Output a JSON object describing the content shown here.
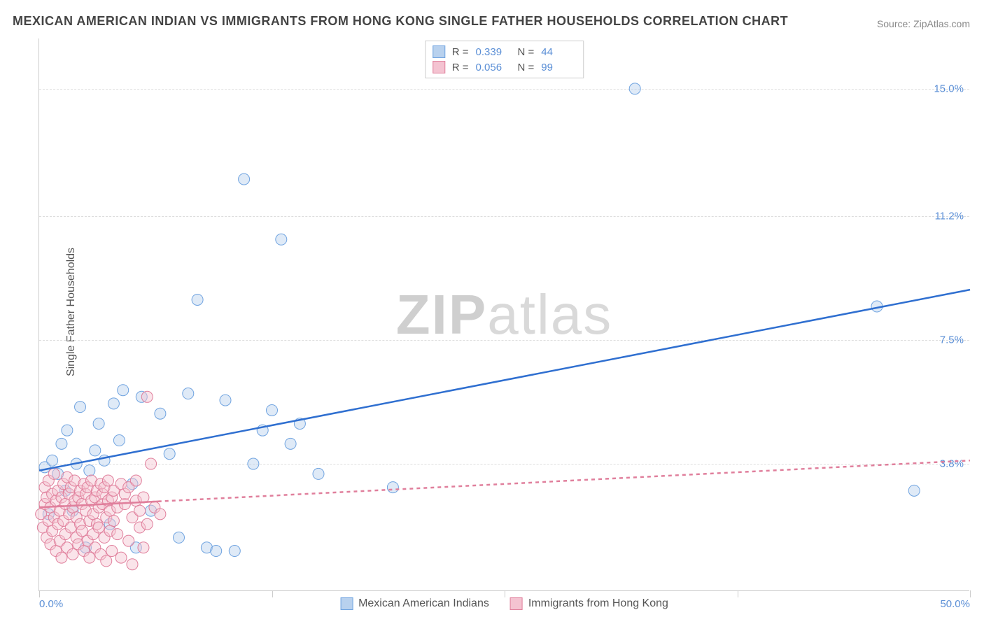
{
  "title": "MEXICAN AMERICAN INDIAN VS IMMIGRANTS FROM HONG KONG SINGLE FATHER HOUSEHOLDS CORRELATION CHART",
  "source": "Source: ZipAtlas.com",
  "ylabel": "Single Father Households",
  "watermark_zip": "ZIP",
  "watermark_atlas": "atlas",
  "chart": {
    "type": "scatter",
    "xlim": [
      0,
      50
    ],
    "ylim": [
      0,
      16.5
    ],
    "x_tick_positions": [
      0,
      12.5,
      25,
      37.5,
      50
    ],
    "x_tick_labels_visible": {
      "0": "0.0%",
      "50": "50.0%"
    },
    "y_gridlines": [
      3.8,
      7.5,
      11.2,
      15.0
    ],
    "y_tick_labels": [
      "3.8%",
      "7.5%",
      "11.2%",
      "15.0%"
    ],
    "background_color": "#ffffff",
    "grid_color": "#dddddd",
    "axis_color": "#cccccc",
    "tick_label_color": "#5b8fd6",
    "label_fontsize": 16,
    "title_fontsize": 18,
    "marker_radius": 8,
    "marker_opacity": 0.45,
    "line_width": 2.5
  },
  "series": [
    {
      "name": "Mexican American Indians",
      "color": "#6fa3e0",
      "fill": "#b8d1ee",
      "stroke": "#6fa3e0",
      "line_color": "#2f6fd0",
      "line_dash": "none",
      "R": "0.339",
      "N": "44",
      "regression": {
        "x1": 0,
        "y1": 3.6,
        "x2": 50,
        "y2": 9.0
      },
      "points": [
        [
          0.3,
          3.7
        ],
        [
          0.5,
          2.3
        ],
        [
          0.7,
          3.9
        ],
        [
          1.0,
          3.5
        ],
        [
          1.2,
          4.4
        ],
        [
          1.4,
          3.0
        ],
        [
          1.5,
          4.8
        ],
        [
          1.8,
          2.4
        ],
        [
          2.0,
          3.8
        ],
        [
          2.2,
          5.5
        ],
        [
          2.5,
          1.3
        ],
        [
          2.7,
          3.6
        ],
        [
          3.0,
          4.2
        ],
        [
          3.2,
          5.0
        ],
        [
          3.5,
          3.9
        ],
        [
          3.8,
          2.0
        ],
        [
          4.0,
          5.6
        ],
        [
          4.3,
          4.5
        ],
        [
          4.5,
          6.0
        ],
        [
          5.0,
          3.2
        ],
        [
          5.2,
          1.3
        ],
        [
          5.5,
          5.8
        ],
        [
          6.0,
          2.4
        ],
        [
          6.5,
          5.3
        ],
        [
          7.0,
          4.1
        ],
        [
          7.5,
          1.6
        ],
        [
          8.0,
          5.9
        ],
        [
          8.5,
          8.7
        ],
        [
          9.0,
          1.3
        ],
        [
          9.5,
          1.2
        ],
        [
          10.0,
          5.7
        ],
        [
          10.5,
          1.2
        ],
        [
          11.0,
          12.3
        ],
        [
          11.5,
          3.8
        ],
        [
          12.0,
          4.8
        ],
        [
          12.5,
          5.4
        ],
        [
          13.0,
          10.5
        ],
        [
          13.5,
          4.4
        ],
        [
          14.0,
          5.0
        ],
        [
          15.0,
          3.5
        ],
        [
          19.0,
          3.1
        ],
        [
          32.0,
          15.0
        ],
        [
          45.0,
          8.5
        ],
        [
          47.0,
          3.0
        ]
      ]
    },
    {
      "name": "Immigrants from Hong Kong",
      "color": "#e89ab0",
      "fill": "#f4c3d1",
      "stroke": "#e07f9c",
      "line_color": "#e07f9c",
      "line_dash": "5,5",
      "R": "0.056",
      "N": "99",
      "regression": {
        "x1": 0,
        "y1": 2.5,
        "x2": 50,
        "y2": 3.9
      },
      "points": [
        [
          0.1,
          2.3
        ],
        [
          0.2,
          1.9
        ],
        [
          0.3,
          2.6
        ],
        [
          0.3,
          3.1
        ],
        [
          0.4,
          1.6
        ],
        [
          0.4,
          2.8
        ],
        [
          0.5,
          2.1
        ],
        [
          0.5,
          3.3
        ],
        [
          0.6,
          1.4
        ],
        [
          0.6,
          2.5
        ],
        [
          0.7,
          2.9
        ],
        [
          0.7,
          1.8
        ],
        [
          0.8,
          2.2
        ],
        [
          0.8,
          3.5
        ],
        [
          0.9,
          1.2
        ],
        [
          0.9,
          2.7
        ],
        [
          1.0,
          2.0
        ],
        [
          1.0,
          3.0
        ],
        [
          1.1,
          1.5
        ],
        [
          1.1,
          2.4
        ],
        [
          1.2,
          2.8
        ],
        [
          1.2,
          1.0
        ],
        [
          1.3,
          3.2
        ],
        [
          1.3,
          2.1
        ],
        [
          1.4,
          1.7
        ],
        [
          1.4,
          2.6
        ],
        [
          1.5,
          3.4
        ],
        [
          1.5,
          1.3
        ],
        [
          1.6,
          2.3
        ],
        [
          1.6,
          2.9
        ],
        [
          1.7,
          1.9
        ],
        [
          1.7,
          3.1
        ],
        [
          1.8,
          2.5
        ],
        [
          1.8,
          1.1
        ],
        [
          1.9,
          2.7
        ],
        [
          1.9,
          3.3
        ],
        [
          2.0,
          1.6
        ],
        [
          2.0,
          2.2
        ],
        [
          2.1,
          2.8
        ],
        [
          2.1,
          1.4
        ],
        [
          2.2,
          3.0
        ],
        [
          2.2,
          2.0
        ],
        [
          2.3,
          1.8
        ],
        [
          2.3,
          2.6
        ],
        [
          2.4,
          3.2
        ],
        [
          2.4,
          1.2
        ],
        [
          2.5,
          2.4
        ],
        [
          2.5,
          2.9
        ],
        [
          2.6,
          1.5
        ],
        [
          2.6,
          3.1
        ],
        [
          2.7,
          2.1
        ],
        [
          2.7,
          1.0
        ],
        [
          2.8,
          2.7
        ],
        [
          2.8,
          3.3
        ],
        [
          2.9,
          1.7
        ],
        [
          2.9,
          2.3
        ],
        [
          3.0,
          2.8
        ],
        [
          3.0,
          1.3
        ],
        [
          3.1,
          3.0
        ],
        [
          3.1,
          2.0
        ],
        [
          3.2,
          1.9
        ],
        [
          3.2,
          2.5
        ],
        [
          3.3,
          3.2
        ],
        [
          3.3,
          1.1
        ],
        [
          3.4,
          2.6
        ],
        [
          3.4,
          2.9
        ],
        [
          3.5,
          1.6
        ],
        [
          3.5,
          3.1
        ],
        [
          3.6,
          2.2
        ],
        [
          3.6,
          0.9
        ],
        [
          3.7,
          2.7
        ],
        [
          3.7,
          3.3
        ],
        [
          3.8,
          1.8
        ],
        [
          3.8,
          2.4
        ],
        [
          3.9,
          2.8
        ],
        [
          3.9,
          1.2
        ],
        [
          4.0,
          3.0
        ],
        [
          4.0,
          2.1
        ],
        [
          4.2,
          1.7
        ],
        [
          4.2,
          2.5
        ],
        [
          4.4,
          3.2
        ],
        [
          4.4,
          1.0
        ],
        [
          4.6,
          2.6
        ],
        [
          4.6,
          2.9
        ],
        [
          4.8,
          1.5
        ],
        [
          4.8,
          3.1
        ],
        [
          5.0,
          2.2
        ],
        [
          5.0,
          0.8
        ],
        [
          5.2,
          2.7
        ],
        [
          5.2,
          3.3
        ],
        [
          5.4,
          1.9
        ],
        [
          5.4,
          2.4
        ],
        [
          5.6,
          2.8
        ],
        [
          5.6,
          1.3
        ],
        [
          5.8,
          5.8
        ],
        [
          5.8,
          2.0
        ],
        [
          6.0,
          3.8
        ],
        [
          6.2,
          2.5
        ],
        [
          6.5,
          2.3
        ]
      ]
    }
  ],
  "bottom_legend": [
    {
      "label": "Mexican American Indians",
      "fill": "#b8d1ee",
      "stroke": "#6fa3e0"
    },
    {
      "label": "Immigrants from Hong Kong",
      "fill": "#f4c3d1",
      "stroke": "#e07f9c"
    }
  ]
}
